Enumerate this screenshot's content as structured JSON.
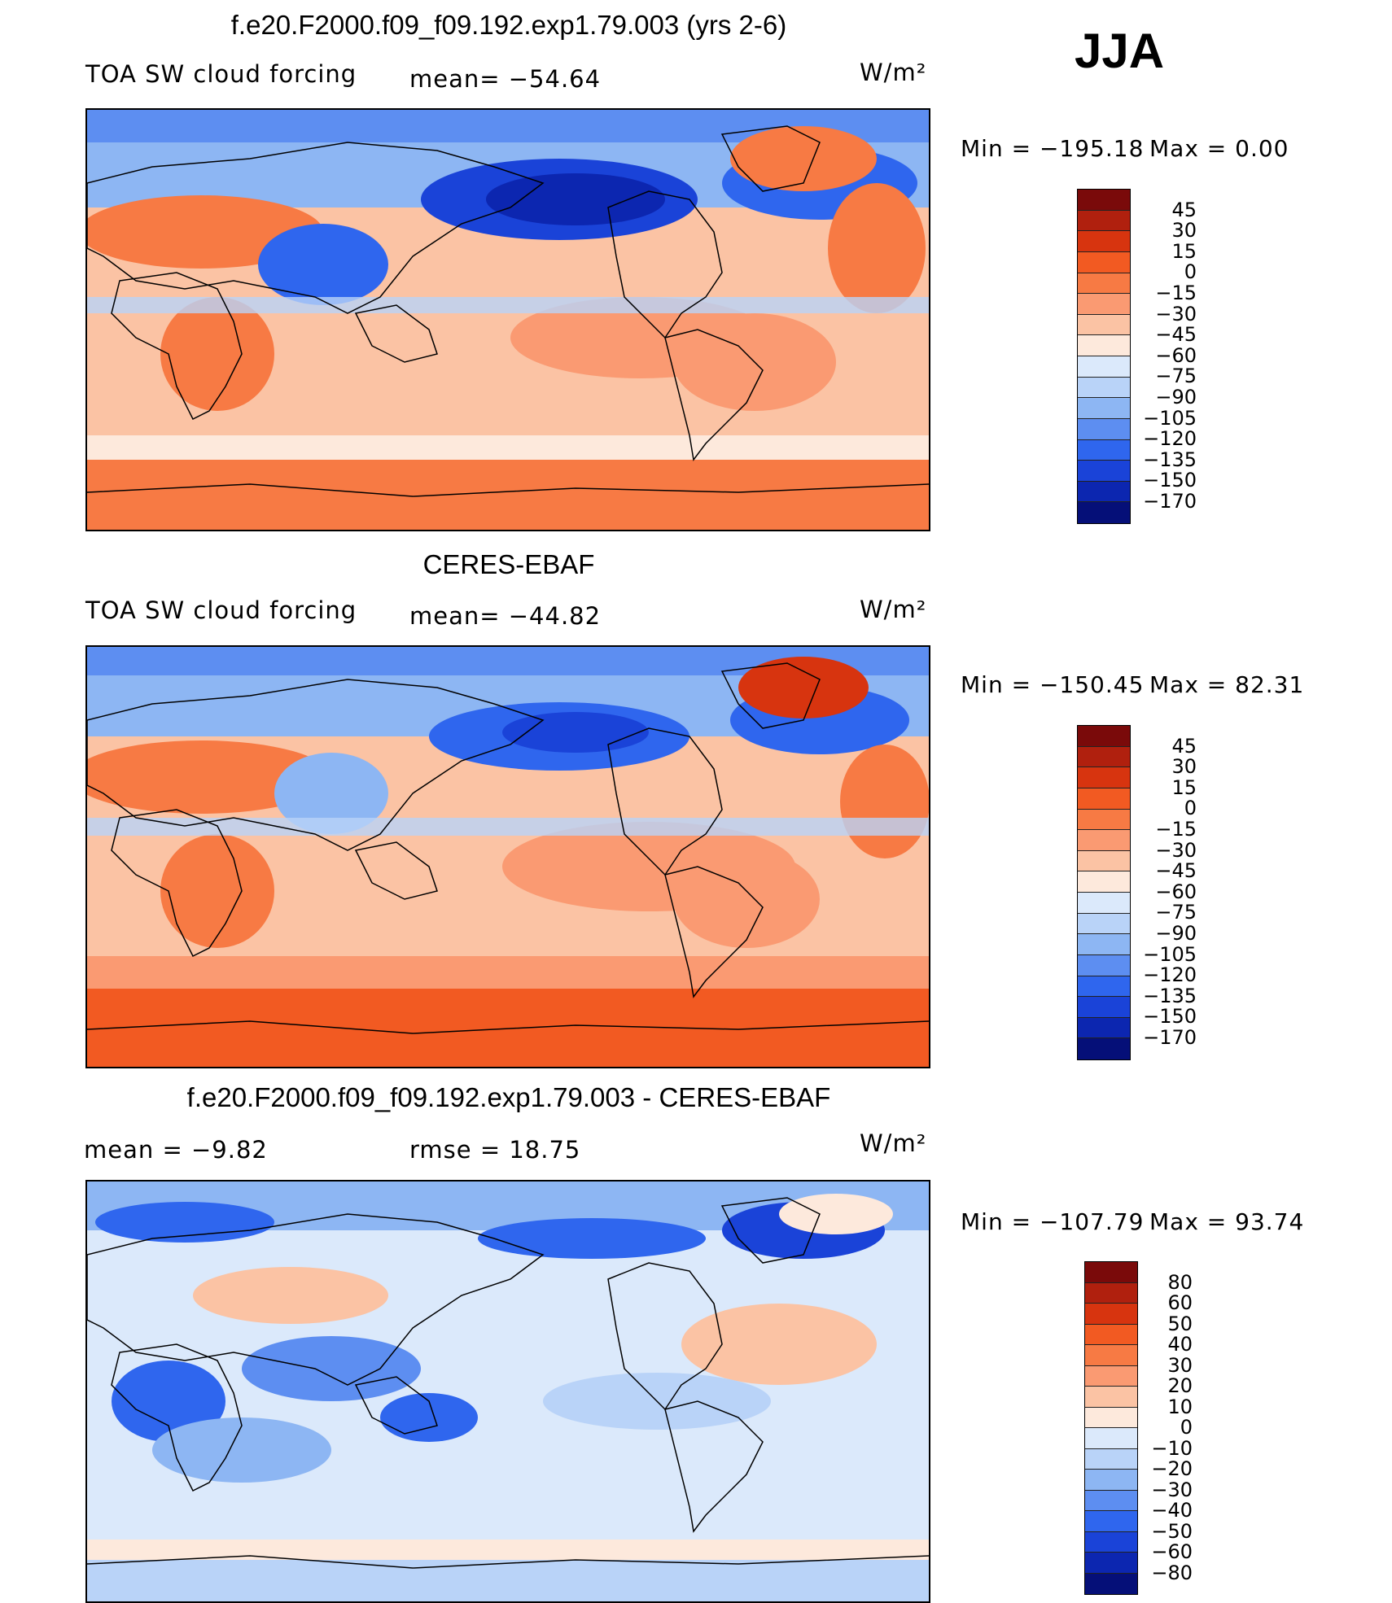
{
  "season": "JJA",
  "panels": [
    {
      "title": "f.e20.F2000.f09_f09.192.exp1.79.003 (yrs 2-6)",
      "variable": "TOA SW cloud forcing",
      "stat": "mean=  −54.64",
      "units": "W/m²",
      "min_label": "Min  =  −195.18",
      "max_label": "Max  =      0.00",
      "colorbar_ticks": [
        "45",
        "30",
        "15",
        "0",
        "−15",
        "−30",
        "−45",
        "−60",
        "−75",
        "−90",
        "−105",
        "−120",
        "−135",
        "−150",
        "−170"
      ]
    },
    {
      "title": "CERES-EBAF",
      "variable": "TOA SW cloud forcing",
      "stat": "mean=  −44.82",
      "units": "W/m²",
      "min_label": "Min  =  −150.45",
      "max_label": "Max  =   82.31",
      "colorbar_ticks": [
        "45",
        "30",
        "15",
        "0",
        "−15",
        "−30",
        "−45",
        "−60",
        "−75",
        "−90",
        "−105",
        "−120",
        "−135",
        "−150",
        "−170"
      ]
    },
    {
      "title": "f.e20.F2000.f09_f09.192.exp1.79.003 - CERES-EBAF",
      "mean_label": "mean  =    −9.82",
      "rmse_label": "rmse  =    18.75",
      "units": "W/m²",
      "min_label": "Min  =  −107.79",
      "max_label": "Max  =   93.74",
      "colorbar_ticks": [
        "80",
        "60",
        "50",
        "40",
        "30",
        "20",
        "10",
        "0",
        "−10",
        "−20",
        "−30",
        "−40",
        "−50",
        "−60",
        "−80"
      ]
    }
  ],
  "palettes": {
    "absolute": [
      "#7a0a0a",
      "#b0200e",
      "#d7340f",
      "#f25a22",
      "#f77a44",
      "#fa9a72",
      "#fbc3a4",
      "#fde9dc",
      "#dbe9fb",
      "#b9d3f8",
      "#8db6f3",
      "#5d8ef1",
      "#2f66ee",
      "#1a43d8",
      "#0c26b0",
      "#050f78"
    ],
    "difference": [
      "#7a0a0a",
      "#b0200e",
      "#d7340f",
      "#f25a22",
      "#f77a44",
      "#fa9a72",
      "#fbc3a4",
      "#fde9dc",
      "#dbe9fb",
      "#b9d3f8",
      "#8db6f3",
      "#5d8ef1",
      "#2f66ee",
      "#1a43d8",
      "#0c26b0",
      "#050f78"
    ]
  }
}
